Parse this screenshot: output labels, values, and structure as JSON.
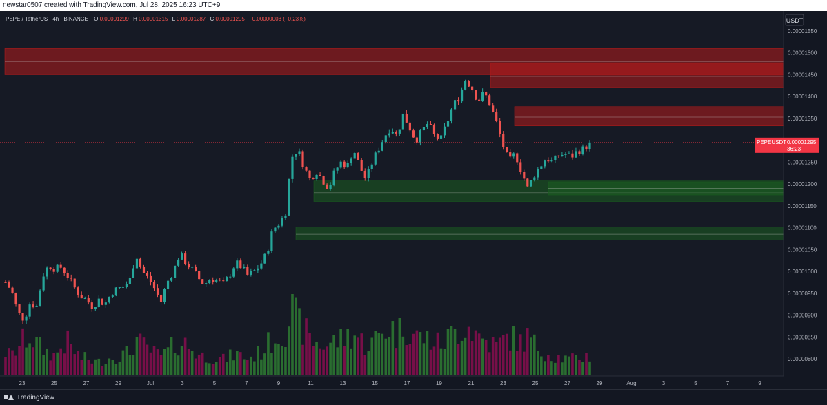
{
  "header": {
    "attribution": "newstar0507 created with TradingView.com, Jul 28, 2025 16:23 UTC+9"
  },
  "legend": {
    "symbol": "PEPE / TetherUS · 4h · BINANCE",
    "o_label": "O",
    "o_value": "0.00001299",
    "h_label": "H",
    "h_value": "0.00001315",
    "l_label": "L",
    "l_value": "0.00001287",
    "c_label": "C",
    "c_value": "0.00001295",
    "change": "−0.00000003 (−0.23%)"
  },
  "footer": {
    "brand": "TradingView"
  },
  "colors": {
    "background": "#161a25",
    "up": "#26a69a",
    "down": "#ef5350",
    "vol_up": "#2e7d32",
    "vol_down": "#880e4f",
    "supply_zone": "#b71c1c",
    "demand_zone": "#1b5e20",
    "price_label": "#f23645"
  },
  "chart_data": {
    "type": "candlestick",
    "currency_label": "USDT",
    "last_price_label": {
      "symbol": "PEPEUSDT",
      "price": "0.00001295",
      "countdown": "36:23"
    },
    "ylim": [
      7.8e-06,
      1.57e-05
    ],
    "y_ticks": [
      "0.00001550",
      "0.00001500",
      "0.00001450",
      "0.00001400",
      "0.00001350",
      "0.00001300",
      "0.00001250",
      "0.00001200",
      "0.00001150",
      "0.00001100",
      "0.00001050",
      "0.00001000",
      "0.00000950",
      "0.00000900",
      "0.00000850",
      "0.00000800"
    ],
    "x_ticks": [
      "23",
      "25",
      "27",
      "29",
      "Jul",
      "3",
      "5",
      "7",
      "9",
      "11",
      "13",
      "15",
      "17",
      "19",
      "21",
      "23",
      "25",
      "27",
      "29",
      "Aug",
      "3",
      "5",
      "7",
      "9"
    ],
    "zones": [
      {
        "kind": "supply",
        "from": "Jun 22",
        "low": 1.45e-05,
        "high": 1.51e-05,
        "mid": 1.48e-05
      },
      {
        "kind": "supply",
        "from": "Jul 22",
        "low": 1.42e-05,
        "high": 1.475e-05,
        "mid": 1.446e-05
      },
      {
        "kind": "supply",
        "from": "Jul 23",
        "low": 1.333e-05,
        "high": 1.377e-05,
        "mid": 1.353e-05
      },
      {
        "kind": "demand",
        "from": "Jul 11",
        "low": 1.16e-05,
        "high": 1.207e-05,
        "mid": 1.18e-05
      },
      {
        "kind": "demand",
        "from": "Jul 25",
        "low": 1.175e-05,
        "high": 1.205e-05,
        "mid": 1.19e-05
      },
      {
        "kind": "demand",
        "from": "Jul 10",
        "low": 1.072e-05,
        "high": 1.102e-05,
        "mid": 1.085e-05
      }
    ],
    "ohlc_path": [
      9.75e-06,
      9.55e-06,
      9.05e-06,
      8.9e-06,
      9.3e-06,
      9.2e-06,
      9.9e-06,
      1.015e-05,
      1.005e-05,
      1.01e-05,
      9.9e-06,
      9.65e-06,
      9.45e-06,
      9.35e-06,
      9.2e-06,
      9.35e-06,
      9.25e-06,
      9.5e-06,
      9.6e-06,
      9.65e-06,
      9.8e-06,
      1.04e-05,
      1e-05,
      9.85e-06,
      9.6e-06,
      9.3e-06,
      9.75e-06,
      1e-05,
      1.04e-05,
      1.02e-05,
      1.005e-05,
      9.85e-06,
      9.7e-06,
      9.85e-06,
      9.8e-06,
      9.7e-06,
      9.9e-06,
      1.02e-05,
      1.01e-05,
      9.9e-06,
      1e-05,
      1.015e-05,
      1.04e-05,
      1.095e-05,
      1.11e-05,
      1.13e-05,
      1.26e-05,
      1.28e-05,
      1.24e-05,
      1.21e-05,
      1.23e-05,
      1.21e-05,
      1.19e-05,
      1.23e-05,
      1.25e-05,
      1.24e-05,
      1.28e-05,
      1.24e-05,
      1.21e-05,
      1.25e-05,
      1.28e-05,
      1.31e-05,
      1.33e-05,
      1.31e-05,
      1.36e-05,
      1.33e-05,
      1.3e-05,
      1.32e-05,
      1.34e-05,
      1.31e-05,
      1.3e-05,
      1.34e-05,
      1.38e-05,
      1.4e-05,
      1.44e-05,
      1.42e-05,
      1.39e-05,
      1.41e-05,
      1.38e-05,
      1.34e-05,
      1.29e-05,
      1.25e-05,
      1.27e-05,
      1.23e-05,
      1.19e-05,
      1.22e-05,
      1.24e-05,
      1.26e-05,
      1.25e-05,
      1.265e-05,
      1.27e-05,
      1.262e-05,
      1.275e-05,
      1.28e-05,
      1.295e-05
    ],
    "volume_path": [
      0.35,
      0.3,
      0.42,
      0.55,
      0.6,
      0.48,
      0.4,
      0.35,
      0.3,
      0.45,
      0.5,
      0.38,
      0.28,
      0.25,
      0.22,
      0.2,
      0.24,
      0.27,
      0.3,
      0.32,
      0.35,
      0.55,
      0.45,
      0.4,
      0.33,
      0.3,
      0.35,
      0.45,
      0.5,
      0.48,
      0.4,
      0.32,
      0.28,
      0.3,
      0.26,
      0.24,
      0.28,
      0.33,
      0.3,
      0.26,
      0.3,
      0.35,
      0.45,
      0.55,
      0.62,
      0.7,
      1.0,
      0.8,
      0.7,
      0.55,
      0.5,
      0.45,
      0.48,
      0.52,
      0.55,
      0.6,
      0.65,
      0.55,
      0.45,
      0.5,
      0.6,
      0.7,
      0.75,
      0.6,
      0.8,
      0.7,
      0.6,
      0.58,
      0.55,
      0.5,
      0.48,
      0.55,
      0.65,
      0.7,
      0.78,
      0.72,
      0.6,
      0.55,
      0.5,
      0.45,
      0.52,
      0.6,
      0.55,
      0.5,
      0.58,
      0.48,
      0.4,
      0.35,
      0.3,
      0.28,
      0.25,
      0.24,
      0.26,
      0.28,
      0.3
    ]
  }
}
